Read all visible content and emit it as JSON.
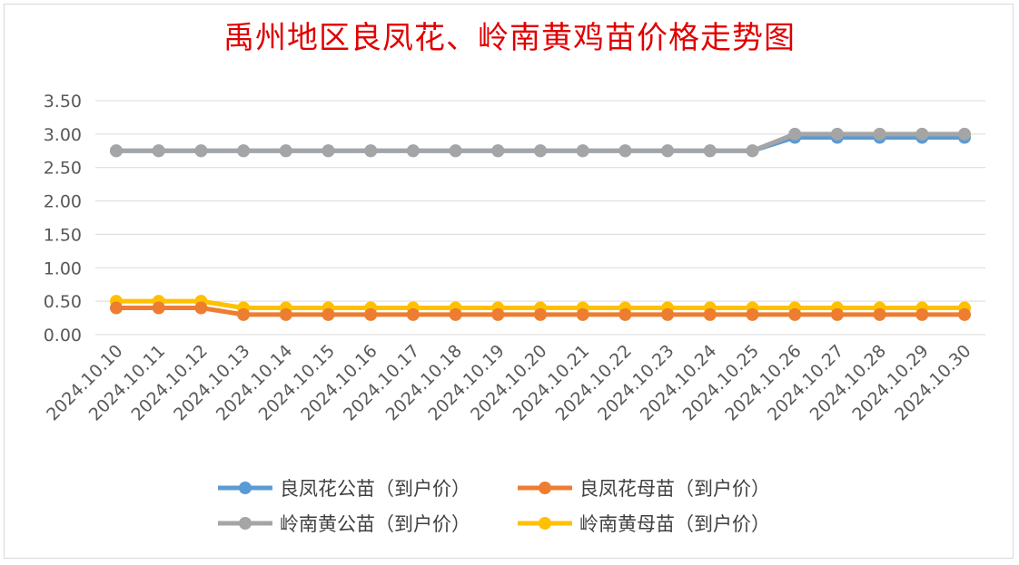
{
  "chart_data": {
    "type": "line",
    "title": "禹州地区良凤花、岭南黄鸡苗价格走势图",
    "xlabel": "",
    "ylabel": "",
    "ylim": [
      0,
      3.5
    ],
    "ytick_step": 0.5,
    "grid": true,
    "legend_position": "bottom",
    "x": [
      "2024.10.10",
      "2024.10.11",
      "2024.10.12",
      "2024.10.13",
      "2024.10.14",
      "2024.10.15",
      "2024.10.16",
      "2024.10.17",
      "2024.10.18",
      "2024.10.19",
      "2024.10.20",
      "2024.10.21",
      "2024.10.22",
      "2024.10.23",
      "2024.10.24",
      "2024.10.25",
      "2024.10.26",
      "2024.10.27",
      "2024.10.28",
      "2024.10.29",
      "2024.10.30"
    ],
    "series": [
      {
        "name": "良凤花公苗（到户价）",
        "color": "#5b9bd5",
        "values": [
          2.75,
          2.75,
          2.75,
          2.75,
          2.75,
          2.75,
          2.75,
          2.75,
          2.75,
          2.75,
          2.75,
          2.75,
          2.75,
          2.75,
          2.75,
          2.75,
          2.95,
          2.95,
          2.95,
          2.95,
          2.95
        ]
      },
      {
        "name": "良凤花母苗（到户价）",
        "color": "#ed7d31",
        "values": [
          0.4,
          0.4,
          0.4,
          0.3,
          0.3,
          0.3,
          0.3,
          0.3,
          0.3,
          0.3,
          0.3,
          0.3,
          0.3,
          0.3,
          0.3,
          0.3,
          0.3,
          0.3,
          0.3,
          0.3,
          0.3
        ]
      },
      {
        "name": "岭南黄公苗（到户价）",
        "color": "#a5a5a5",
        "values": [
          2.75,
          2.75,
          2.75,
          2.75,
          2.75,
          2.75,
          2.75,
          2.75,
          2.75,
          2.75,
          2.75,
          2.75,
          2.75,
          2.75,
          2.75,
          2.75,
          3.0,
          3.0,
          3.0,
          3.0,
          3.0
        ]
      },
      {
        "name": "岭南黄母苗（到户价）",
        "color": "#ffc000",
        "values": [
          0.5,
          0.5,
          0.5,
          0.4,
          0.4,
          0.4,
          0.4,
          0.4,
          0.4,
          0.4,
          0.4,
          0.4,
          0.4,
          0.4,
          0.4,
          0.4,
          0.4,
          0.4,
          0.4,
          0.4,
          0.4
        ]
      }
    ]
  }
}
